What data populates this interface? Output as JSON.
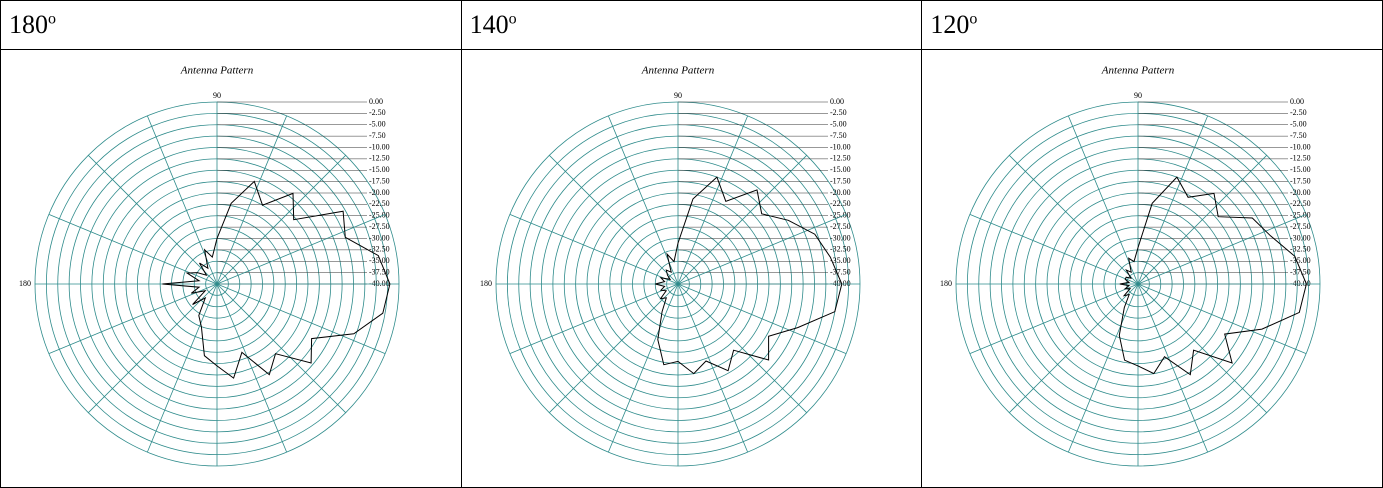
{
  "table": {
    "headers": [
      {
        "text": "180",
        "sup": "o"
      },
      {
        "text": "140",
        "sup": "o"
      },
      {
        "text": "120",
        "sup": "o"
      }
    ]
  },
  "chart_data": [
    {
      "type": "polar",
      "title": "Antenna Pattern",
      "theta": [
        0,
        10,
        20,
        30,
        40,
        50,
        60,
        70,
        80,
        90,
        100,
        110,
        120,
        130,
        140,
        150,
        160,
        170,
        180,
        190,
        200,
        210,
        220,
        230,
        240,
        250,
        260,
        270,
        280,
        290,
        300,
        310,
        320,
        330,
        340,
        350
      ],
      "values": [
        -2,
        -4,
        -10,
        -8,
        -18,
        -14,
        -20,
        -16,
        -22,
        -30,
        -34,
        -32,
        -36,
        -34,
        -37,
        -35,
        -33,
        -36,
        -28,
        -36,
        -34,
        -37,
        -33,
        -36,
        -32,
        -30,
        -24,
        -22,
        -19,
        -24,
        -17,
        -20,
        -13,
        -16,
        -8,
        -3
      ],
      "color": "#000000",
      "grid_color": "#2e8b8b",
      "rlim": [
        -40,
        0
      ],
      "rticks": [
        {
          "value": 0,
          "label": "0.00"
        },
        {
          "value": -2.5,
          "label": "-2.50"
        },
        {
          "value": -5,
          "label": "-5.00"
        },
        {
          "value": -7.5,
          "label": "-7.50"
        },
        {
          "value": -10,
          "label": "-10.00"
        },
        {
          "value": -12.5,
          "label": "-12.50"
        },
        {
          "value": -15,
          "label": "-15.00"
        },
        {
          "value": -17.5,
          "label": "-17.50"
        },
        {
          "value": -20,
          "label": "-20.00"
        },
        {
          "value": -22.5,
          "label": "-22.50"
        },
        {
          "value": -25,
          "label": "-25.00"
        },
        {
          "value": -27.5,
          "label": "-27.50"
        },
        {
          "value": -30,
          "label": "-30.00"
        },
        {
          "value": -32.5,
          "label": "-32.50"
        },
        {
          "value": -35,
          "label": "-35.00"
        },
        {
          "value": -37.5,
          "label": "-37.50"
        },
        {
          "value": -40,
          "label": "-40.00"
        }
      ],
      "thetagrid": [
        0,
        22.5,
        45,
        67.5,
        90,
        112.5,
        135,
        157.5,
        180,
        202.5,
        225,
        247.5,
        270,
        292.5,
        315,
        337.5
      ],
      "thetaticks": [
        90,
        180
      ]
    },
    {
      "type": "polar",
      "title": "Antenna Pattern",
      "theta": [
        0,
        10,
        20,
        30,
        40,
        50,
        60,
        70,
        80,
        90,
        100,
        110,
        120,
        130,
        140,
        150,
        160,
        170,
        180,
        190,
        200,
        210,
        220,
        230,
        240,
        250,
        260,
        270,
        280,
        290,
        300,
        310,
        320,
        330,
        340,
        350
      ],
      "values": [
        -4,
        -6,
        -8,
        -12,
        -16,
        -13,
        -19,
        -15,
        -21,
        -31,
        -35,
        -33,
        -37,
        -36,
        -37,
        -38,
        -36,
        -37,
        -35,
        -37,
        -36,
        -37,
        -35,
        -36,
        -33,
        -27,
        -22,
        -23,
        -20,
        -22,
        -18,
        -21,
        -14,
        -17,
        -12,
        -5
      ],
      "color": "#000000",
      "grid_color": "#2e8b8b",
      "rlim": [
        -40,
        0
      ],
      "rticks": [
        {
          "value": 0,
          "label": "0.00"
        },
        {
          "value": -2.5,
          "label": "-2.50"
        },
        {
          "value": -5,
          "label": "-5.00"
        },
        {
          "value": -7.5,
          "label": "-7.50"
        },
        {
          "value": -10,
          "label": "-10.00"
        },
        {
          "value": -12.5,
          "label": "-12.50"
        },
        {
          "value": -15,
          "label": "-15.00"
        },
        {
          "value": -17.5,
          "label": "-17.50"
        },
        {
          "value": -20,
          "label": "-20.00"
        },
        {
          "value": -22.5,
          "label": "-22.50"
        },
        {
          "value": -25,
          "label": "-25.00"
        },
        {
          "value": -27.5,
          "label": "-27.50"
        },
        {
          "value": -30,
          "label": "-30.00"
        },
        {
          "value": -32.5,
          "label": "-32.50"
        },
        {
          "value": -35,
          "label": "-35.00"
        },
        {
          "value": -37.5,
          "label": "-37.50"
        },
        {
          "value": -40,
          "label": "-40.00"
        }
      ],
      "thetagrid": [
        0,
        22.5,
        45,
        67.5,
        90,
        112.5,
        135,
        157.5,
        180,
        202.5,
        225,
        247.5,
        270,
        292.5,
        315,
        337.5
      ],
      "thetaticks": [
        90,
        180
      ]
    },
    {
      "type": "polar",
      "title": "Antenna Pattern",
      "theta": [
        0,
        10,
        20,
        30,
        40,
        50,
        60,
        70,
        80,
        90,
        100,
        110,
        120,
        130,
        140,
        150,
        160,
        170,
        180,
        190,
        200,
        210,
        220,
        230,
        240,
        250,
        260,
        270,
        280,
        290,
        300,
        310,
        320,
        330,
        340,
        350
      ],
      "values": [
        -3,
        -5,
        -9,
        -11,
        -17,
        -14,
        -18,
        -15,
        -22,
        -32,
        -35,
        -34,
        -37,
        -36,
        -38,
        -37,
        -37,
        -38,
        -36,
        -38,
        -37,
        -38,
        -36,
        -37,
        -34,
        -28,
        -23,
        -22,
        -20,
        -23,
        -17,
        -21,
        -13,
        -18,
        -11,
        -4
      ],
      "color": "#000000",
      "grid_color": "#2e8b8b",
      "rlim": [
        -40,
        0
      ],
      "rticks": [
        {
          "value": 0,
          "label": "0.00"
        },
        {
          "value": -2.5,
          "label": "-2.50"
        },
        {
          "value": -5,
          "label": "-5.00"
        },
        {
          "value": -7.5,
          "label": "-7.50"
        },
        {
          "value": -10,
          "label": "-10.00"
        },
        {
          "value": -12.5,
          "label": "-12.50"
        },
        {
          "value": -15,
          "label": "-15.00"
        },
        {
          "value": -17.5,
          "label": "-17.50"
        },
        {
          "value": -20,
          "label": "-20.00"
        },
        {
          "value": -22.5,
          "label": "-22.50"
        },
        {
          "value": -25,
          "label": "-25.00"
        },
        {
          "value": -27.5,
          "label": "-27.50"
        },
        {
          "value": -30,
          "label": "-30.00"
        },
        {
          "value": -32.5,
          "label": "-32.50"
        },
        {
          "value": -35,
          "label": "-35.00"
        },
        {
          "value": -37.5,
          "label": "-37.50"
        },
        {
          "value": -40,
          "label": "-40.00"
        }
      ],
      "thetagrid": [
        0,
        22.5,
        45,
        67.5,
        90,
        112.5,
        135,
        157.5,
        180,
        202.5,
        225,
        247.5,
        270,
        292.5,
        315,
        337.5
      ],
      "thetaticks": [
        90,
        180
      ]
    }
  ]
}
